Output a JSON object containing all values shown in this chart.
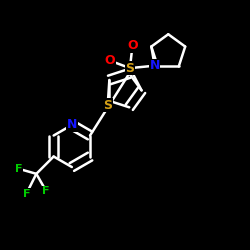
{
  "bg_color": "#000000",
  "bond_color": "#ffffff",
  "N_color": "#1515ff",
  "S_color": "#d4a017",
  "O_color": "#ff0000",
  "F_color": "#00cc00",
  "line_width": 1.8,
  "font_size": 9,
  "figsize": [
    2.5,
    2.5
  ],
  "dpi": 100,
  "xlim": [
    0,
    1
  ],
  "ylim": [
    0,
    1
  ]
}
